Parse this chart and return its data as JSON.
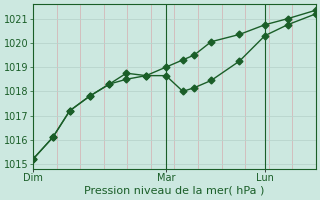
{
  "background_color": "#cce8e0",
  "grid_color_h": "#b8d4cc",
  "grid_color_v": "#d4b8b8",
  "line_color": "#1a5e28",
  "xlabel": "Pression niveau de la mer( hPa )",
  "xlabel_fontsize": 8,
  "ylim": [
    1014.8,
    1021.6
  ],
  "yticks": [
    1015,
    1016,
    1017,
    1018,
    1019,
    1020,
    1021
  ],
  "ytick_fontsize": 7,
  "xtick_fontsize": 7,
  "day_labels": [
    "Dim",
    "Mar",
    "Lun"
  ],
  "day_positions": [
    0.0,
    0.47,
    0.82
  ],
  "vline_positions": [
    0.47,
    0.82
  ],
  "line1_x": [
    0.0,
    0.07,
    0.13,
    0.2,
    0.27,
    0.33,
    0.4,
    0.47,
    0.53,
    0.57,
    0.63,
    0.73,
    0.82,
    0.9,
    1.0
  ],
  "line1_y": [
    1015.2,
    1016.1,
    1017.2,
    1017.8,
    1018.3,
    1018.75,
    1018.65,
    1018.65,
    1018.0,
    1018.15,
    1018.45,
    1019.25,
    1020.3,
    1020.75,
    1021.2
  ],
  "line2_x": [
    0.0,
    0.07,
    0.13,
    0.2,
    0.27,
    0.33,
    0.4,
    0.47,
    0.53,
    0.57,
    0.63,
    0.73,
    0.82,
    0.9,
    1.0
  ],
  "line2_y": [
    1015.2,
    1016.1,
    1017.2,
    1017.8,
    1018.3,
    1018.5,
    1018.65,
    1019.0,
    1019.3,
    1019.5,
    1020.05,
    1020.35,
    1020.75,
    1021.0,
    1021.35
  ],
  "marker_size": 3.5,
  "line_width": 1.0
}
